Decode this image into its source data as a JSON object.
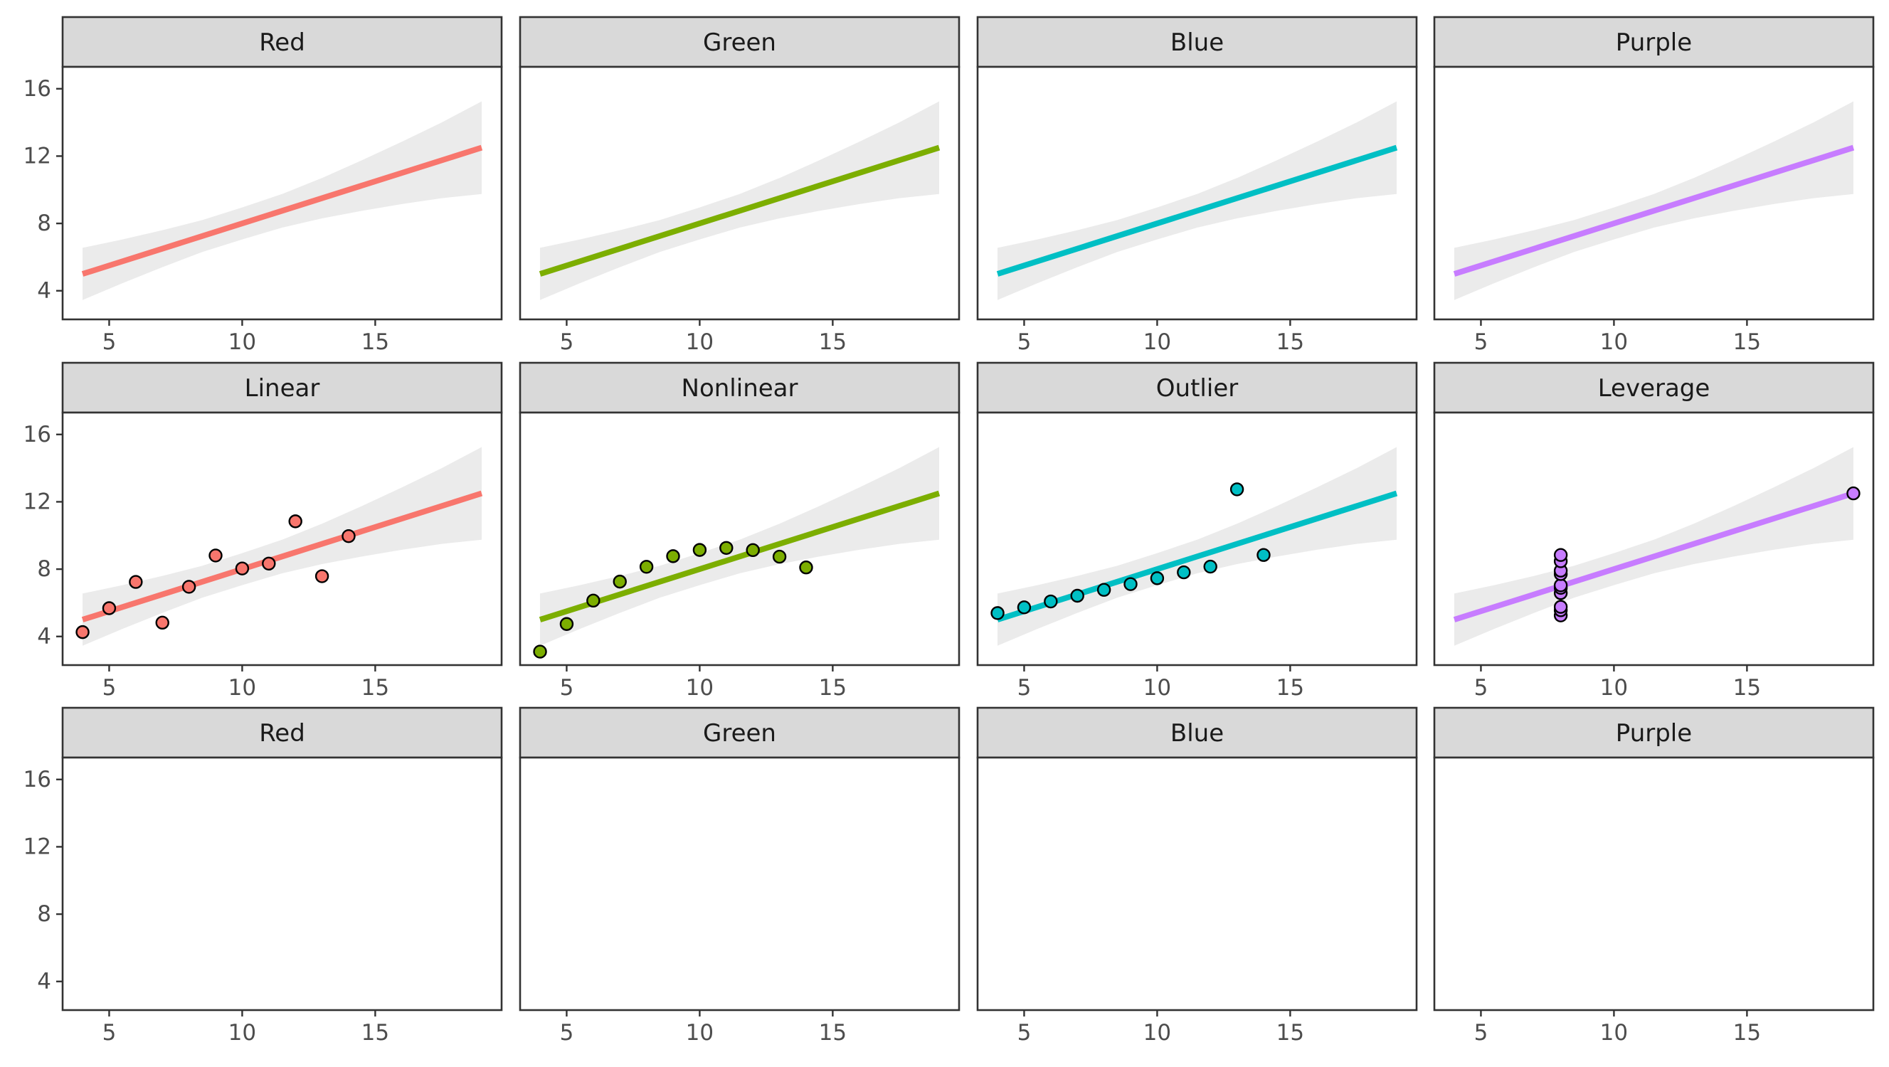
{
  "chart_data": {
    "type": "scatter",
    "layout": "facet-grid",
    "nrow": 3,
    "ncol": 4,
    "xlim": [
      3.25,
      19.75
    ],
    "ylim": [
      2.3,
      17.3
    ],
    "x_ticks": [
      5,
      10,
      15
    ],
    "y_ticks": [
      4,
      8,
      12,
      16
    ],
    "panels": [
      {
        "title": "Red",
        "color": "#F8766D",
        "show_line": true,
        "points": []
      },
      {
        "title": "Green",
        "color": "#7CAE00",
        "show_line": true,
        "points": []
      },
      {
        "title": "Blue",
        "color": "#00BFC4",
        "show_line": true,
        "points": []
      },
      {
        "title": "Purple",
        "color": "#C77CFF",
        "show_line": true,
        "points": []
      },
      {
        "title": "Linear",
        "color": "#F8766D",
        "show_line": true,
        "points": [
          [
            4,
            4.26
          ],
          [
            5,
            5.68
          ],
          [
            6,
            7.24
          ],
          [
            7,
            4.82
          ],
          [
            8,
            6.95
          ],
          [
            9,
            8.81
          ],
          [
            10,
            8.04
          ],
          [
            11,
            8.33
          ],
          [
            12,
            10.84
          ],
          [
            13,
            7.58
          ],
          [
            14,
            9.96
          ]
        ]
      },
      {
        "title": "Nonlinear",
        "color": "#7CAE00",
        "show_line": true,
        "points": [
          [
            4,
            3.1
          ],
          [
            5,
            4.74
          ],
          [
            6,
            6.13
          ],
          [
            7,
            7.26
          ],
          [
            8,
            8.14
          ],
          [
            9,
            8.77
          ],
          [
            10,
            9.14
          ],
          [
            11,
            9.26
          ],
          [
            12,
            9.13
          ],
          [
            13,
            8.74
          ],
          [
            14,
            8.1
          ]
        ]
      },
      {
        "title": "Outlier",
        "color": "#00BFC4",
        "show_line": true,
        "points": [
          [
            4,
            5.39
          ],
          [
            5,
            5.73
          ],
          [
            6,
            6.08
          ],
          [
            7,
            6.42
          ],
          [
            8,
            6.77
          ],
          [
            9,
            7.11
          ],
          [
            10,
            7.46
          ],
          [
            11,
            7.81
          ],
          [
            12,
            8.15
          ],
          [
            13,
            12.74
          ],
          [
            14,
            8.84
          ]
        ]
      },
      {
        "title": "Leverage",
        "color": "#C77CFF",
        "show_line": true,
        "points": [
          [
            8,
            5.25
          ],
          [
            8,
            5.56
          ],
          [
            8,
            5.76
          ],
          [
            8,
            6.58
          ],
          [
            8,
            6.89
          ],
          [
            8,
            7.04
          ],
          [
            8,
            7.71
          ],
          [
            8,
            7.91
          ],
          [
            8,
            8.47
          ],
          [
            8,
            8.84
          ],
          [
            19,
            12.5
          ]
        ]
      },
      {
        "title": "Red",
        "color": "#F8766D",
        "show_line": false,
        "points": []
      },
      {
        "title": "Green",
        "color": "#7CAE00",
        "show_line": false,
        "points": []
      },
      {
        "title": "Blue",
        "color": "#00BFC4",
        "show_line": false,
        "points": []
      },
      {
        "title": "Purple",
        "color": "#C77CFF",
        "show_line": false,
        "points": []
      }
    ],
    "fit": {
      "method": "lm",
      "x_range": [
        4,
        19
      ],
      "line": [
        [
          4,
          5.0
        ],
        [
          19,
          12.5
        ]
      ],
      "ci_band": [
        [
          4,
          3.45,
          6.55
        ],
        [
          5.5,
          4.45,
          7.05
        ],
        [
          7,
          5.4,
          7.6
        ],
        [
          8.5,
          6.3,
          8.2
        ],
        [
          10,
          7.05,
          8.95
        ],
        [
          11.5,
          7.75,
          9.75
        ],
        [
          13,
          8.3,
          10.7
        ],
        [
          14.5,
          8.75,
          11.75
        ],
        [
          16,
          9.15,
          12.85
        ],
        [
          17.5,
          9.5,
          14.0
        ],
        [
          19,
          9.75,
          15.25
        ]
      ]
    },
    "grid": false,
    "legend": "none"
  }
}
